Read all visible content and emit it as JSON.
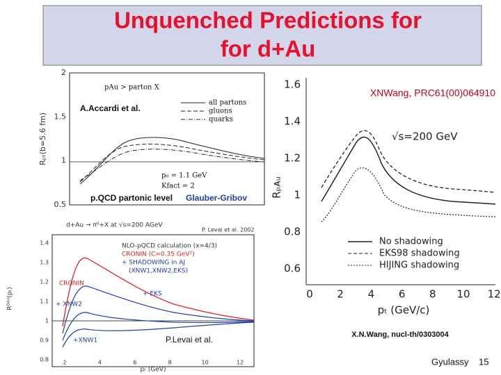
{
  "header": {
    "title_lines": [
      "Unquenched Predictions for",
      "for d+Au"
    ]
  },
  "panels": [
    {
      "annotations": [
        "A.Accardi et al.",
        "p.QCD partonic level",
        "Glauber-Gribov"
      ],
      "plot_title": "pAu    >  parton X",
      "legend": [
        "all partons",
        "gluons",
        "quarks"
      ],
      "params": [
        "p₀ = 1.1 GeV",
        "Kfact = 2"
      ],
      "y_label": "Rₚₜ(b=5.6 fm)",
      "yticks": [
        "2",
        "1.5",
        "1",
        "0.5"
      ]
    },
    {
      "header_text": "d+Au → π⁰+X at √s=200 AGeV",
      "credit": "P. Levai et al. 2002",
      "legend": [
        "NLO-pQCD calculation (x=4/3)",
        "CRONIN (C=0.35 GeV²)",
        "+ SHADOWING in AJ",
        "(XNW1,XNW2,EKS)"
      ],
      "curve_labels": [
        "CRONIN",
        "+ EKS",
        "+ XNW2",
        "+XNW1"
      ],
      "annotation": "P.Levai et al.",
      "y_label": "Rᴰᵃᵘ(pₜ)",
      "yticks": [
        "1.4",
        "1.3",
        "1.2",
        "1.1",
        "1",
        "0.9",
        "0.8"
      ],
      "xticks": [
        "2",
        "4",
        "6",
        "8",
        "10",
        "12"
      ],
      "x_label": "pₜ (GeV)"
    },
    {
      "reference": "XNWang, PRC61(00)064910",
      "energy": "√s=200 GeV",
      "legend": [
        "No shadowing",
        "EKS98 shadowing",
        "HIJING shadowing"
      ],
      "y_label": "Rₚᴀᵤ",
      "yticks": [
        "1.6",
        "1.4",
        "1.2",
        "1",
        "0.8",
        "0.6"
      ],
      "xticks": [
        "0",
        "2",
        "4",
        "6",
        "8",
        "10",
        "12"
      ],
      "x_label": "pₜ (GeV/c)",
      "annotation": "X.N.Wang, nucl-th/0303004"
    }
  ],
  "footer": {
    "author": "Gyulassy",
    "page": "15"
  }
}
